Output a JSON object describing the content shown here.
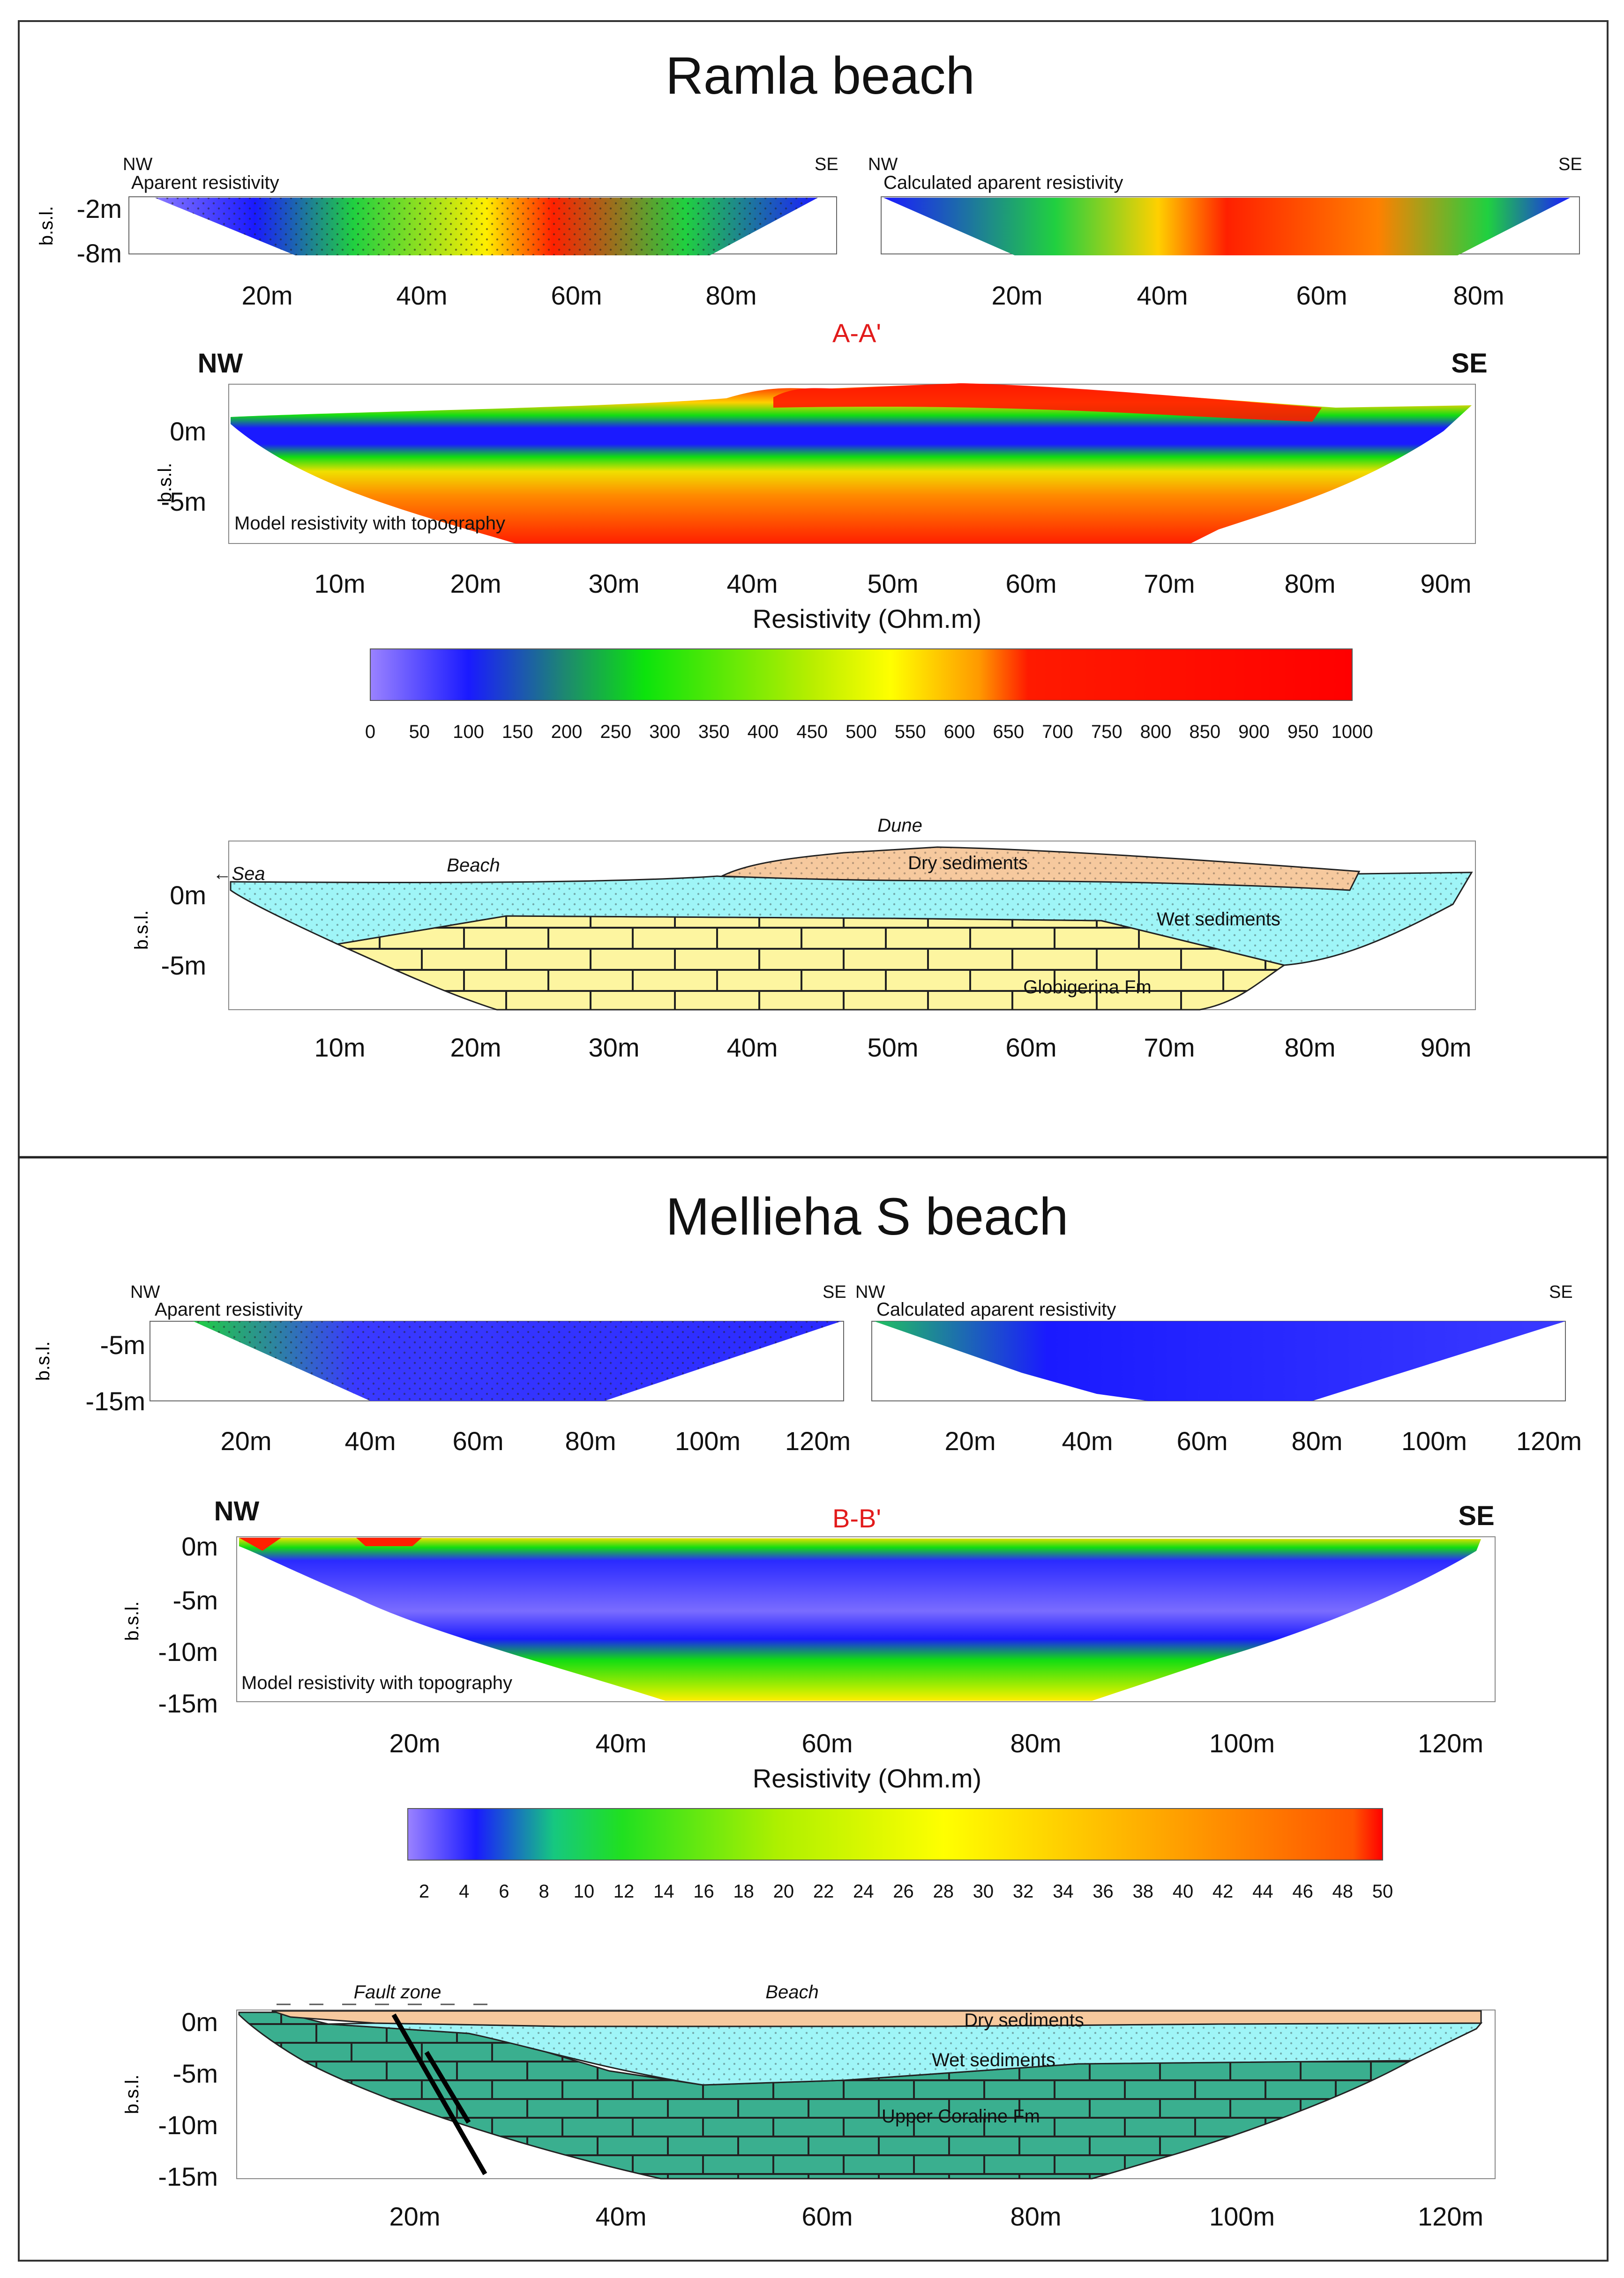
{
  "ramla": {
    "title": "Ramla beach",
    "nw": "NW",
    "se": "SE",
    "apparent_label": "Aparent resistivity",
    "calculated_label": "Calculated aparent resistivity",
    "small_y_ticks": [
      "-2m",
      "-8m"
    ],
    "small_x_ticks": [
      "20m",
      "40m",
      "60m",
      "80m"
    ],
    "section": "A-A'",
    "model_label": "Model resistivity with topography",
    "y_ticks": [
      "0m",
      "-5m"
    ],
    "x_ticks": [
      "10m",
      "20m",
      "30m",
      "40m",
      "50m",
      "60m",
      "70m",
      "80m",
      "90m"
    ],
    "resistivity_title": "Resistivity (Ohm.m)",
    "colorbar_ticks": [
      "0",
      "50",
      "100",
      "150",
      "200",
      "250",
      "300",
      "350",
      "400",
      "450",
      "500",
      "550",
      "600",
      "650",
      "700",
      "750",
      "800",
      "850",
      "900",
      "950",
      "1000"
    ],
    "geo": {
      "dune": "Dune",
      "beach": "Beach",
      "sea": "←Sea",
      "dry": "Dry sediments",
      "wet": "Wet sediments",
      "globigerina": "Globigerina Fm"
    }
  },
  "mellieha": {
    "title": "Mellieha S beach",
    "nw": "NW",
    "se": "SE",
    "apparent_label": "Aparent resistivity",
    "calculated_label": "Calculated aparent resistivity",
    "small_y_ticks": [
      "-5m",
      "-15m"
    ],
    "small_x_ticks": [
      "20m",
      "40m",
      "60m",
      "80m",
      "100m",
      "120m"
    ],
    "section": "B-B'",
    "model_label": "Model resistivity with topography",
    "y_ticks": [
      "0m",
      "-5m",
      "-10m",
      "-15m"
    ],
    "x_ticks": [
      "20m",
      "40m",
      "60m",
      "80m",
      "100m",
      "120m"
    ],
    "resistivity_title": "Resistivity (Ohm.m)",
    "colorbar_ticks": [
      "2",
      "4",
      "6",
      "8",
      "10",
      "12",
      "14",
      "16",
      "18",
      "20",
      "22",
      "24",
      "26",
      "28",
      "30",
      "32",
      "34",
      "36",
      "38",
      "40",
      "42",
      "44",
      "46",
      "48",
      "50"
    ],
    "geo": {
      "fault": "Fault zone",
      "beach": "Beach",
      "dry": "Dry sediments",
      "wet": "Wet sediments",
      "coraline": "Upper Coraline Fm"
    }
  },
  "ylabel": "b.s.l.",
  "colors": {
    "dry": "#f6c99e",
    "wet": "#9ff5f7",
    "globigerina": "#fdf5a0",
    "coraline": "#3aaf8f",
    "section_label": "#e21b1b"
  }
}
